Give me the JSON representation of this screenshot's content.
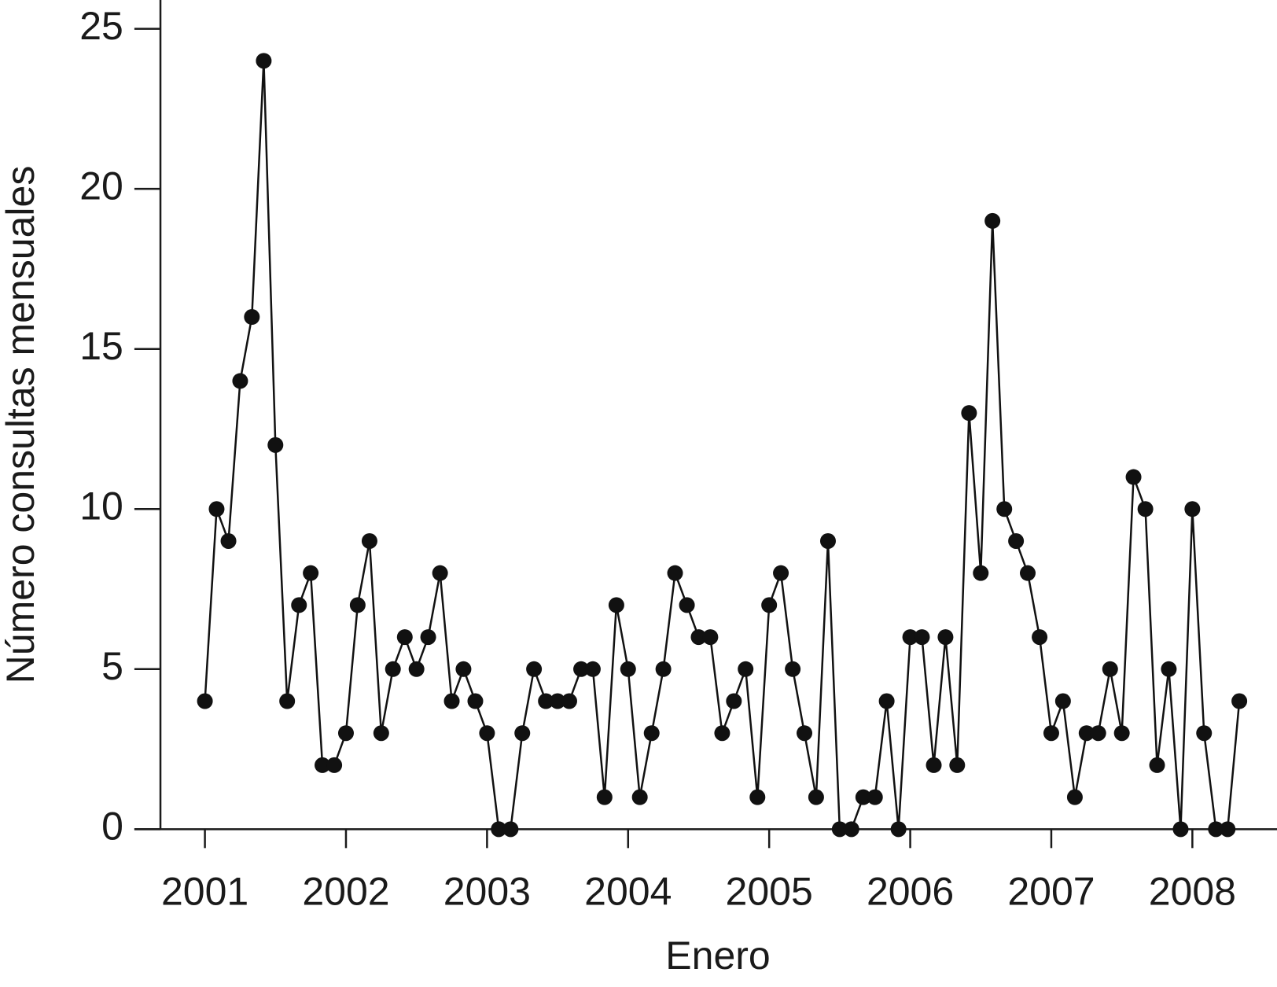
{
  "chart_data": {
    "type": "line",
    "x_label": "Enero",
    "y_label": "Número consultas mensuales",
    "x": [
      2001,
      2001.083,
      2001.167,
      2001.25,
      2001.333,
      2001.417,
      2001.5,
      2001.583,
      2001.667,
      2001.75,
      2001.833,
      2001.917,
      2002,
      2002.083,
      2002.167,
      2002.25,
      2002.333,
      2002.417,
      2002.5,
      2002.583,
      2002.667,
      2002.75,
      2002.833,
      2002.917,
      2003,
      2003.083,
      2003.167,
      2003.25,
      2003.333,
      2003.417,
      2003.5,
      2003.583,
      2003.667,
      2003.75,
      2003.833,
      2003.917,
      2004,
      2004.083,
      2004.167,
      2004.25,
      2004.333,
      2004.417,
      2004.5,
      2004.583,
      2004.667,
      2004.75,
      2004.833,
      2004.917,
      2005,
      2005.083,
      2005.167,
      2005.25,
      2005.333,
      2005.417,
      2005.5,
      2005.583,
      2005.667,
      2005.75,
      2005.833,
      2005.917,
      2006,
      2006.083,
      2006.167,
      2006.25,
      2006.333,
      2006.417,
      2006.5,
      2006.583,
      2006.667,
      2006.75,
      2006.833,
      2006.917,
      2007,
      2007.083,
      2007.167,
      2007.25,
      2007.333,
      2007.417,
      2007.5,
      2007.583,
      2007.667,
      2007.75,
      2007.833,
      2007.917,
      2008,
      2008.083,
      2008.167,
      2008.25,
      2008.333
    ],
    "values": [
      4,
      10,
      9,
      14,
      16,
      24,
      12,
      4,
      7,
      8,
      2,
      2,
      3,
      7,
      9,
      3,
      5,
      6,
      5,
      6,
      8,
      4,
      5,
      4,
      3,
      0,
      0,
      3,
      5,
      4,
      4,
      4,
      5,
      5,
      1,
      7,
      5,
      1,
      3,
      5,
      8,
      7,
      6,
      6,
      3,
      4,
      5,
      1,
      7,
      8,
      5,
      3,
      1,
      9,
      0,
      0,
      1,
      1,
      4,
      0,
      6,
      6,
      2,
      6,
      2,
      13,
      8,
      19,
      10,
      9,
      8,
      6,
      3,
      4,
      1,
      3,
      3,
      5,
      3,
      11,
      10,
      2,
      5,
      0,
      10,
      3,
      0,
      0,
      4
    ],
    "color": "#111111",
    "xlim": [
      2000.5,
      2008.6
    ],
    "ylim": [
      0,
      25.9
    ],
    "xticks": [
      2001,
      2002,
      2003,
      2004,
      2005,
      2006,
      2007,
      2008
    ],
    "yticks": [
      0,
      5,
      10,
      15,
      20,
      25
    ]
  }
}
